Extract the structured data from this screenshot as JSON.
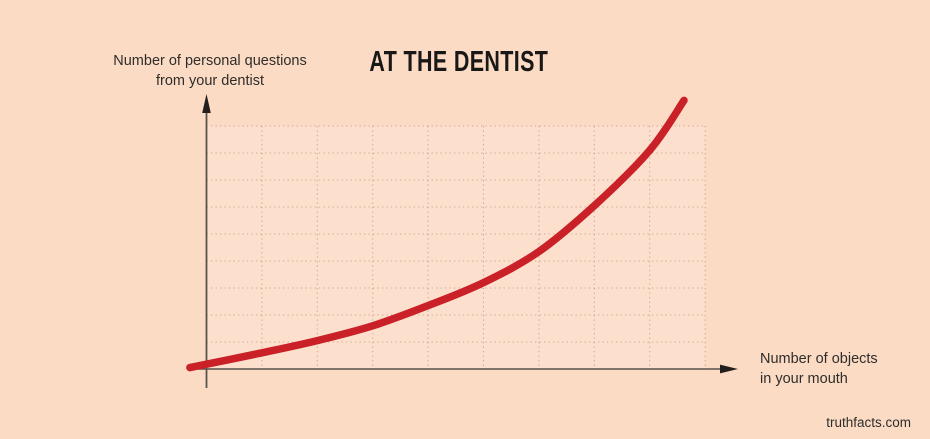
{
  "title": {
    "text": "AT THE DENTIST"
  },
  "labels": {
    "y_axis": {
      "lines": [
        "Number of personal questions",
        "from your dentist"
      ]
    },
    "x_axis": {
      "lines": [
        "Number of objects",
        "in your mouth"
      ]
    }
  },
  "watermark": {
    "text": "truthfacts.com"
  },
  "colors": {
    "background": "#fcdbc5",
    "plot_area_tint": "rgba(255,255,255,0.14)",
    "curve": "#ca2128",
    "grid": "#a5786a",
    "axis": "#56524c",
    "arrow": "#221f1c",
    "text": "#2f2d2a",
    "title_text": "#191817"
  },
  "chart_data": {
    "type": "line",
    "style": "exponential-growth",
    "title": "AT THE DENTIST",
    "xlabel": "Number of objects in your mouth",
    "ylabel": "Number of personal questions from your dentist",
    "x_tick_labels": [],
    "y_tick_labels": [],
    "xlim_grid_units": [
      0,
      9
    ],
    "ylim_grid_units": [
      0,
      9
    ],
    "grid": {
      "columns": 9,
      "rows": 9,
      "dotted": true,
      "on": true
    },
    "legend": "none",
    "axis_arrows": true,
    "series": [
      {
        "name": "personal questions vs objects in mouth",
        "color": "#ca2128",
        "stroke_width": 7.5,
        "points_grid_units": [
          [
            -0.3,
            0.05
          ],
          [
            1.0,
            0.6
          ],
          [
            2.0,
            1.05
          ],
          [
            3.0,
            1.6
          ],
          [
            4.0,
            2.35
          ],
          [
            5.0,
            3.2
          ],
          [
            6.0,
            4.35
          ],
          [
            7.0,
            6.05
          ],
          [
            8.0,
            8.1
          ],
          [
            8.62,
            9.95
          ]
        ]
      }
    ]
  }
}
